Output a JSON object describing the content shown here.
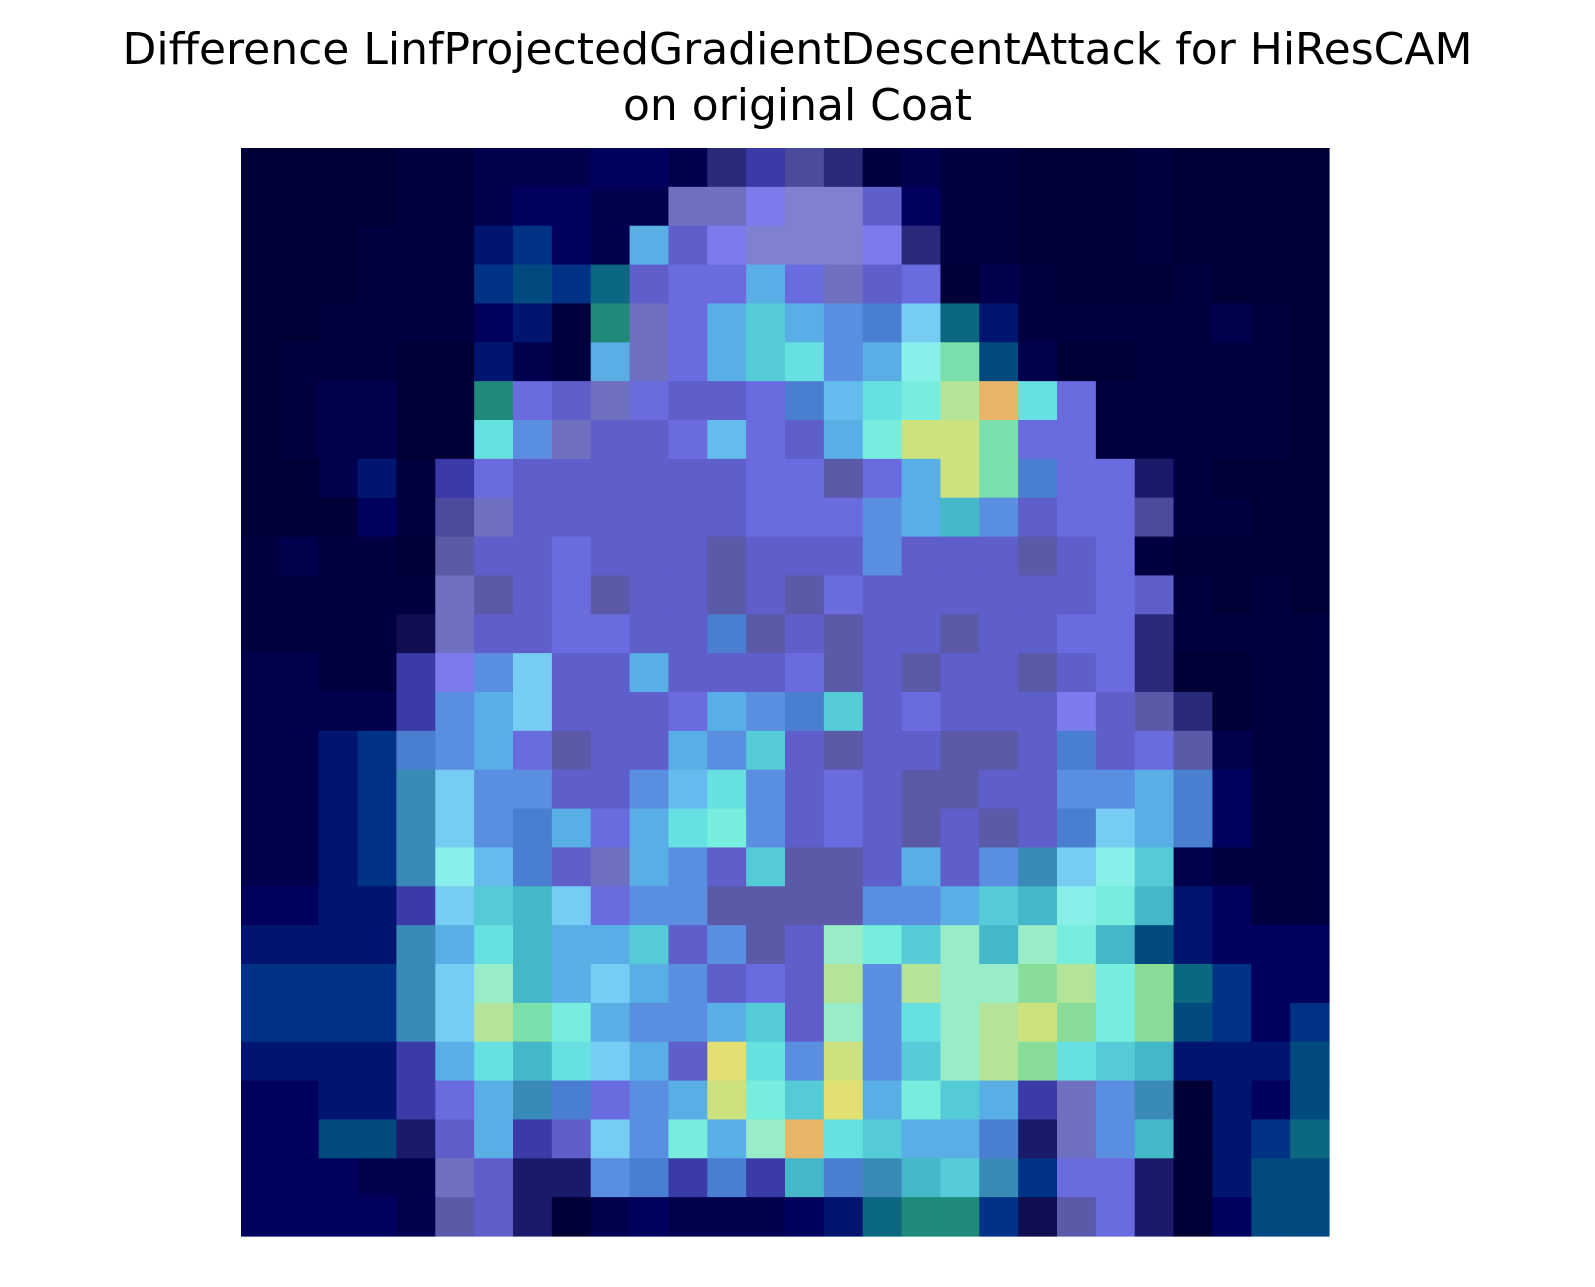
{
  "chart_data": {
    "type": "heatmap",
    "title_lines": [
      "Difference LinfProjectedGradientDescentAttack for HiResCAM",
      "on original Coat"
    ],
    "axes_visible": false,
    "grid": false,
    "rows": 28,
    "cols": 28,
    "palette": {
      "A": "#000036",
      "B": "#000040",
      "C": "#00004e",
      "D": "#00005e",
      "E": "#001570",
      "F": "#003286",
      "G": "#004a80",
      "H": "#0b6880",
      "I": "#1f8a7a",
      "J": "#2a2a7a",
      "K": "#3a3aa8",
      "L": "#4b4b9e",
      "M": "#5a5aa8",
      "N": "#5f5fcc",
      "O": "#6b6be0",
      "P": "#7070c0",
      "Q": "#7b7bee",
      "R": "#8080d0",
      "S": "#5a8ee0",
      "T": "#4a7ed0",
      "U": "#3a8ab8",
      "V": "#5aaee6",
      "W": "#66bbee",
      "X": "#77ccf4",
      "Y": "#55cbd8",
      "Z": "#44b8c8",
      "a": "#66e0e0",
      "b": "#77eedd",
      "c": "#88f0e8",
      "d": "#99ecc8",
      "e": "#88dd99",
      "f": "#b4e49a",
      "g": "#cce27e",
      "h": "#e2e070",
      "i": "#e8b468",
      "j": "#7adfaa",
      "k": "#1a1a6a",
      "l": "#0e0e50"
    },
    "grid_rows": [
      "AAAABBCCCDDCJKLJBCBBAAABAAAA",
      "AAAABBCDDCCPPQRRNDBBAAABAAAA",
      "AAABBBEFDCVNQRRRQJBBAAABAAAA",
      "AAABBBFGFHNOOVOPNOACBAAABAAA",
      "AABBBBDEBIPOVYVSTXHEBBBBBCBA",
      "ABBBAAECBVPOVYaSVcjGCAABBBBA",
      "ABCCAAIONPONNOTWabfiaOBBBBBA",
      "ABCCAAaSPNNOWONVbggjOOBBBBBA",
      "AACEBKONNNNNNOOMOVgjTOOkBAAA",
      "AAADBLPNNNNNNOOOSVZSNOOLBBAA",
      "BCBBAMNNONNNMNNNSNNNMNOBAAAA",
      "BBBBBPMNOMNNMNMONNNNNNONBABA",
      "BBBBlPNNOONNTMNMNNMNNOOJBBBB",
      "CCBBKQSXNNVNNNOMNMNNMNOJAABB",
      "CCCCKSVXNNNOVSTYNONNNQNMJABB",
      "CCEFTSVOMNNVSYNMNNMMNTNOMCBB",
      "CCEFUXSSNNSWaSNONMMNNSSVTDBB",
      "CCEFUXSTVOVabSNONMNMNTXVTDBB",
      "CCEFUcWTNPVSNYMMNVNSUXcYCBBB",
      "DDEEKXYZXOSSMMMMSSVYZcbZEDBB",
      "EEEEUVaZVVYNSMNdbYdZdbZGEDDD",
      "FFFFUXdZVXVSNONfSfddefbeHFDD",
      "FFFFUXfjbVSSVYNdSadfgebeGFDF",
      "EEEEKVaZaXVNhaSgSYdfeaYZEEEG",
      "DDEEKOVUTOSVgbYhVbYVKPSUAEDG",
      "DDGGkNVKNXSbVdiaYVVTkPSZAEFH",
      "DDDCCPNkkSTKTKZTUZYUFOOkAEGG",
      "DDDDCMNkACDCCCDEHIIFlMOkADGG"
    ]
  }
}
